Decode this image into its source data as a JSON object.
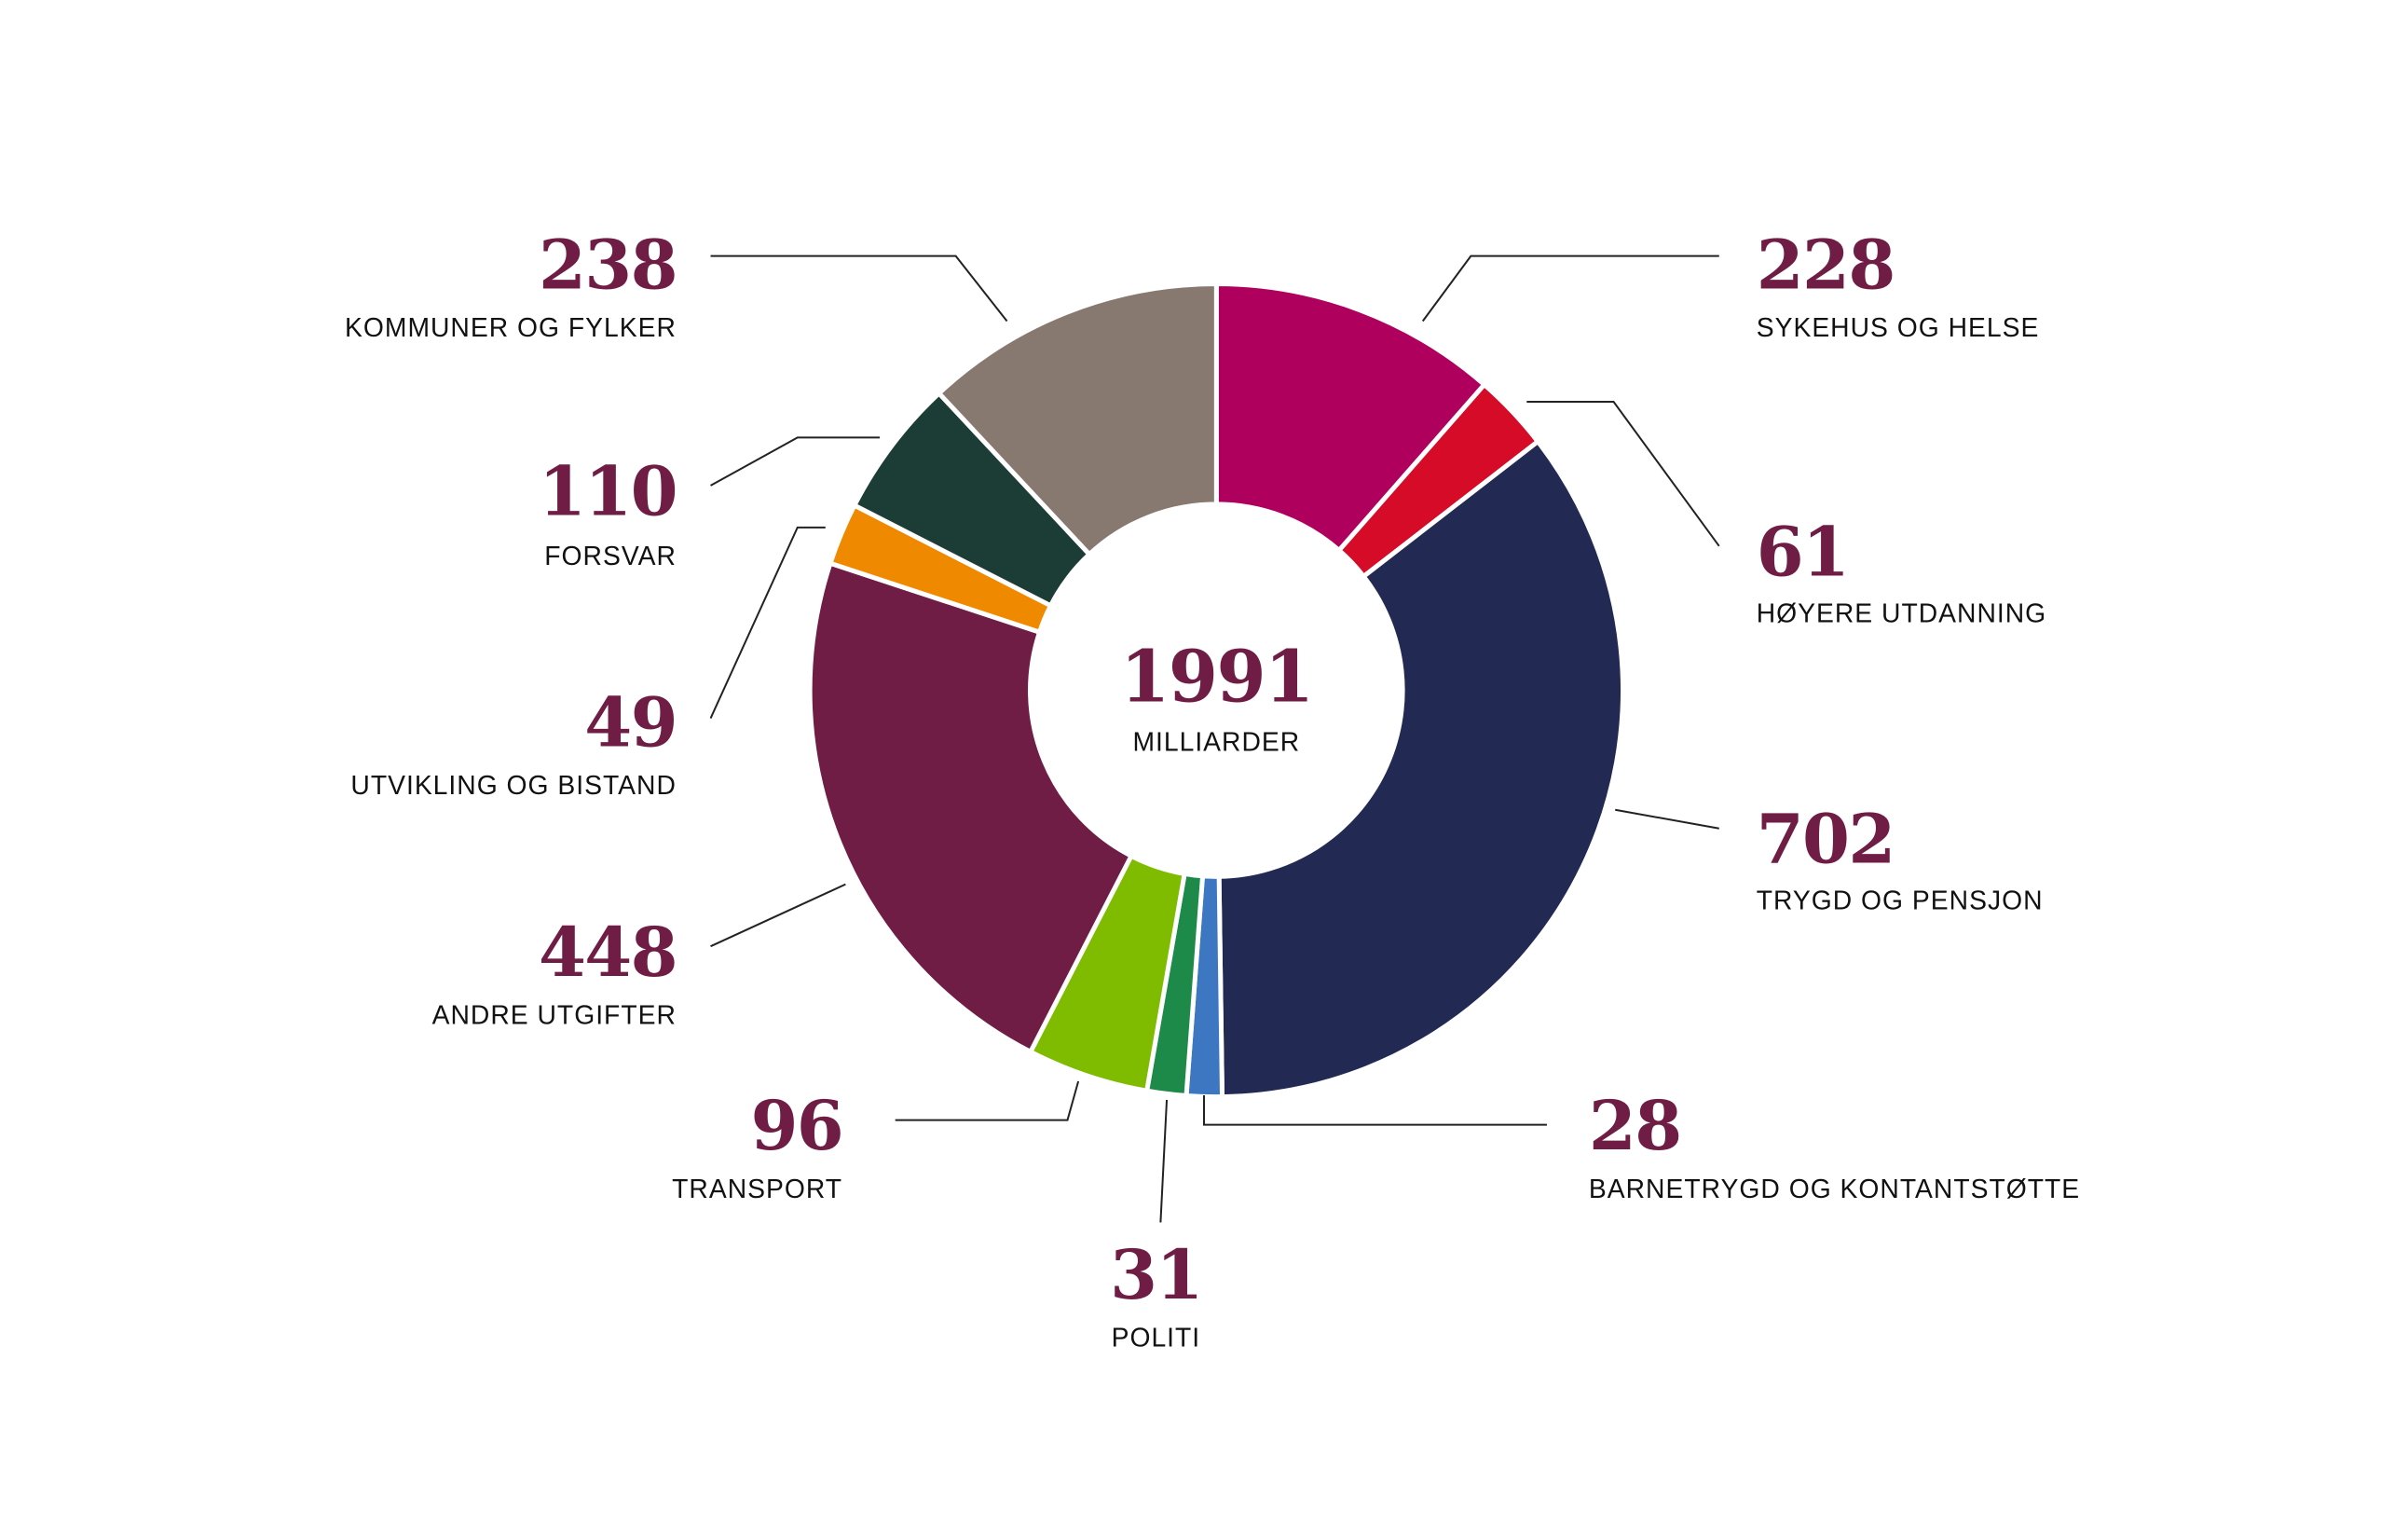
{
  "chart_data": {
    "type": "pie",
    "variant": "donut",
    "title": "",
    "center": {
      "value": "1991",
      "label": "MILLIARDER"
    },
    "total": 1991,
    "unit": "milliarder",
    "value_color": "#701D45",
    "start_angle_deg": 0,
    "direction": "clockwise",
    "slices": [
      {
        "label": "SYKEHUS OG HELSE",
        "value": 228,
        "color": "#B0005E"
      },
      {
        "label": "HØYERE UTDANNING",
        "value": 61,
        "color": "#D50B28"
      },
      {
        "label": "TRYGD OG PENSJON",
        "value": 702,
        "color": "#222A54"
      },
      {
        "label": "BARNETRYGD OG KONTANTSTØTTE",
        "value": 28,
        "color": "#3D77C1"
      },
      {
        "label": "POLITI",
        "value": 31,
        "color": "#1E8A4A"
      },
      {
        "label": "TRANSPORT",
        "value": 96,
        "color": "#7FBC00"
      },
      {
        "label": "ANDRE UTGIFTER",
        "value": 448,
        "color": "#701D45"
      },
      {
        "label": "UTVIKLING OG BISTAND",
        "value": 49,
        "color": "#EF8A00"
      },
      {
        "label": "FORSVAR",
        "value": 110,
        "color": "#1C3D35"
      },
      {
        "label": "KOMMUNER OG FYLKER",
        "value": 238,
        "color": "#877970"
      }
    ],
    "legend_position": "callouts"
  },
  "callouts": [
    {
      "value": "228",
      "label": "SYKEHUS OG HELSE"
    },
    {
      "value": "61",
      "label": "HØYERE UTDANNING"
    },
    {
      "value": "702",
      "label": "TRYGD OG PENSJON"
    },
    {
      "value": "28",
      "label": "BARNETRYGD OG KONTANTSTØTTE"
    },
    {
      "value": "31",
      "label": "POLITI"
    },
    {
      "value": "96",
      "label": "TRANSPORT"
    },
    {
      "value": "448",
      "label": "ANDRE UTGIFTER"
    },
    {
      "value": "49",
      "label": "UTVIKLING OG BISTAND"
    },
    {
      "value": "110",
      "label": "FORSVAR"
    },
    {
      "value": "238",
      "label": "KOMMUNER OG FYLKER"
    }
  ]
}
